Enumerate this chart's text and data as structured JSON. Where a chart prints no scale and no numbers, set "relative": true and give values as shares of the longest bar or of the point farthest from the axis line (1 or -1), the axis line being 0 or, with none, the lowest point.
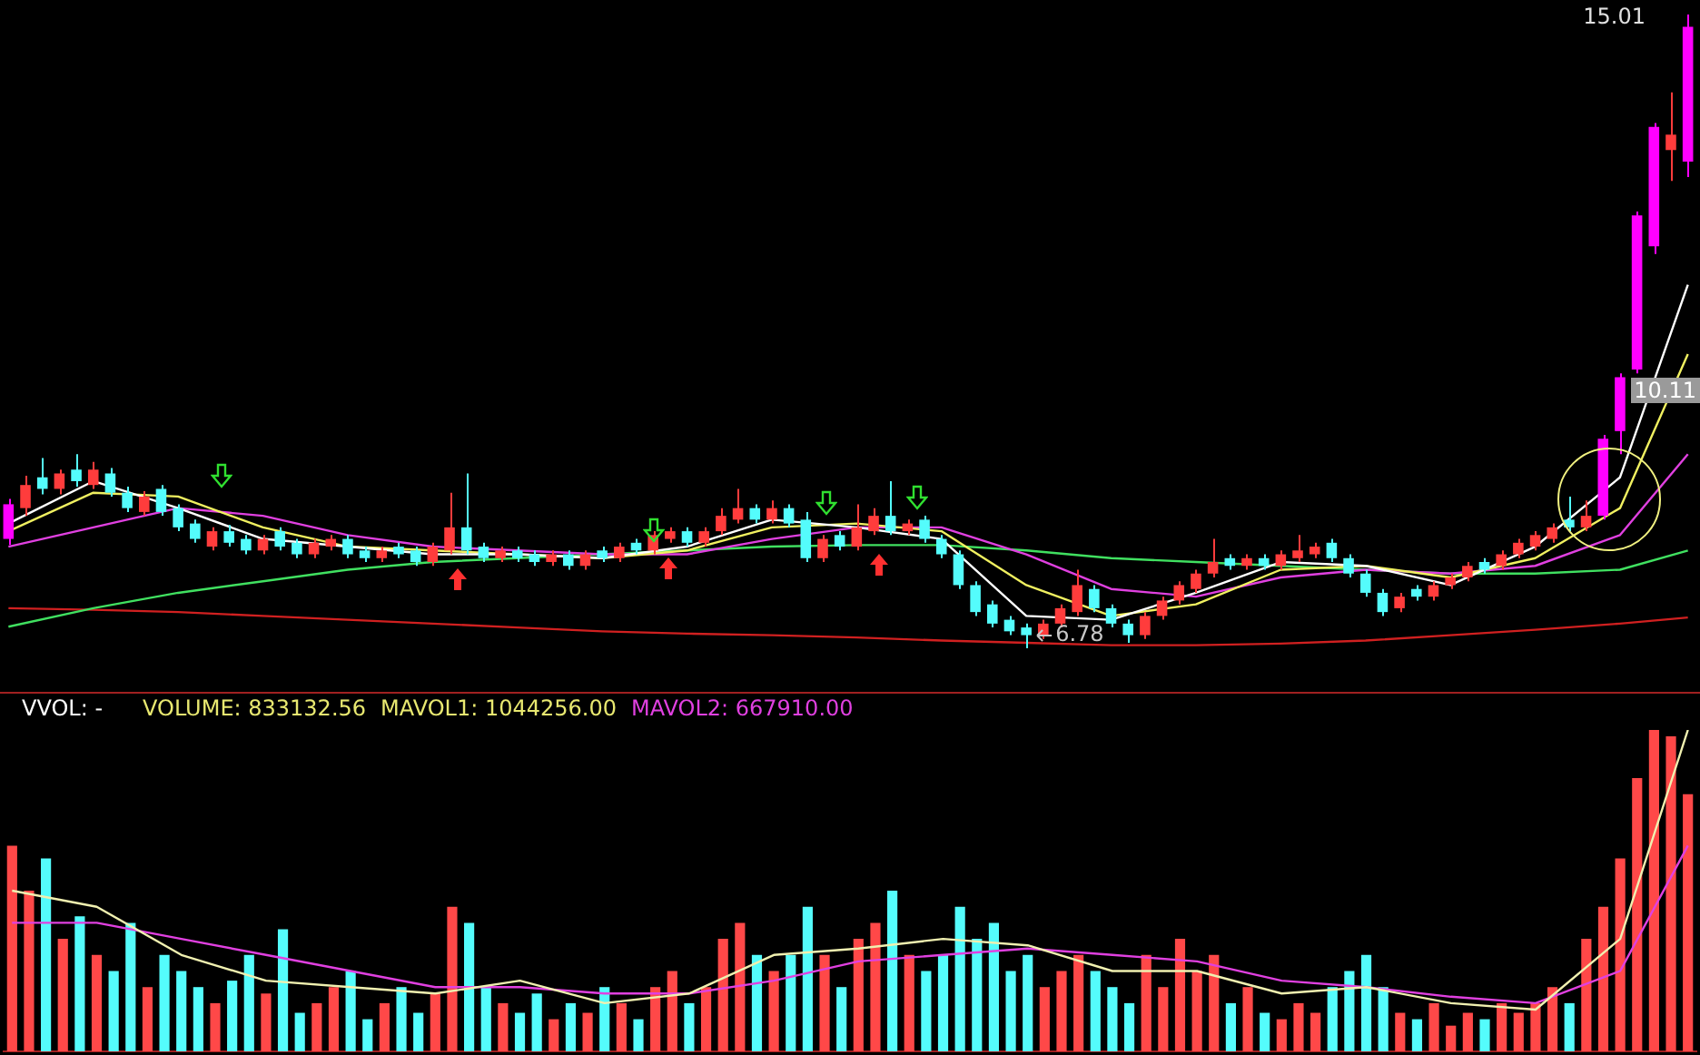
{
  "chart_data": [
    {
      "type": "candlestick",
      "categories": [
        null,
        null,
        null,
        null,
        null,
        null,
        null,
        null,
        null,
        null,
        null,
        null,
        null,
        null,
        null,
        null,
        null,
        null,
        null,
        null,
        null,
        null,
        null,
        null,
        null,
        null,
        null,
        null,
        null,
        null,
        null,
        null,
        null,
        null,
        null,
        null,
        null,
        null,
        null,
        null,
        null,
        null,
        null,
        null,
        null,
        null,
        null,
        null,
        null,
        null,
        null,
        null,
        null,
        null,
        null,
        null,
        null,
        null,
        null,
        null,
        null,
        null,
        null,
        null,
        null,
        null,
        null,
        null,
        null,
        null,
        null,
        null,
        null,
        null,
        null,
        null,
        null,
        null,
        null,
        null,
        null,
        null,
        null,
        null,
        null,
        null,
        null,
        null,
        null,
        null,
        null,
        null,
        null,
        null,
        null,
        null,
        null,
        null,
        null,
        null
      ],
      "ohlc": [
        [
          8.2,
          8.72,
          8.12,
          8.65
        ],
        [
          8.6,
          9.02,
          8.5,
          8.9
        ],
        [
          9.0,
          9.25,
          8.78,
          8.85
        ],
        [
          8.85,
          9.1,
          8.78,
          9.05
        ],
        [
          9.1,
          9.3,
          8.88,
          8.95
        ],
        [
          8.9,
          9.2,
          8.85,
          9.1
        ],
        [
          9.05,
          9.12,
          8.75,
          8.8
        ],
        [
          8.8,
          8.88,
          8.55,
          8.6
        ],
        [
          8.55,
          8.82,
          8.5,
          8.75
        ],
        [
          8.85,
          8.9,
          8.5,
          8.55
        ],
        [
          8.6,
          8.65,
          8.3,
          8.35
        ],
        [
          8.4,
          8.45,
          8.15,
          8.2
        ],
        [
          8.1,
          8.35,
          8.05,
          8.3
        ],
        [
          8.3,
          8.38,
          8.1,
          8.15
        ],
        [
          8.2,
          8.25,
          8.0,
          8.05
        ],
        [
          8.05,
          8.25,
          8.0,
          8.2
        ],
        [
          8.3,
          8.35,
          8.05,
          8.1
        ],
        [
          8.15,
          8.2,
          7.95,
          8.0
        ],
        [
          8.0,
          8.2,
          7.95,
          8.15
        ],
        [
          8.1,
          8.25,
          8.05,
          8.2
        ],
        [
          8.2,
          8.25,
          7.95,
          8.0
        ],
        [
          8.05,
          8.1,
          7.9,
          7.95
        ],
        [
          7.95,
          8.1,
          7.9,
          8.05
        ],
        [
          8.1,
          8.15,
          7.95,
          8.0
        ],
        [
          8.05,
          8.1,
          7.85,
          7.9
        ],
        [
          7.9,
          8.15,
          7.85,
          8.1
        ],
        [
          8.05,
          8.8,
          8.0,
          8.35
        ],
        [
          8.35,
          9.05,
          8.0,
          8.05
        ],
        [
          8.1,
          8.15,
          7.9,
          7.95
        ],
        [
          7.95,
          8.1,
          7.9,
          8.05
        ],
        [
          8.05,
          8.1,
          7.9,
          7.95
        ],
        [
          8.0,
          8.05,
          7.85,
          7.9
        ],
        [
          7.9,
          8.05,
          7.85,
          8.0
        ],
        [
          8.0,
          8.05,
          7.8,
          7.85
        ],
        [
          7.85,
          8.05,
          7.8,
          8.0
        ],
        [
          8.05,
          8.1,
          7.9,
          7.95
        ],
        [
          7.95,
          8.15,
          7.9,
          8.1
        ],
        [
          8.15,
          8.2,
          8.0,
          8.05
        ],
        [
          8.05,
          8.3,
          8.0,
          8.25
        ],
        [
          8.2,
          8.35,
          8.15,
          8.3
        ],
        [
          8.3,
          8.35,
          8.1,
          8.15
        ],
        [
          8.15,
          8.35,
          8.1,
          8.3
        ],
        [
          8.3,
          8.6,
          8.25,
          8.5
        ],
        [
          8.45,
          8.85,
          8.4,
          8.6
        ],
        [
          8.6,
          8.65,
          8.4,
          8.45
        ],
        [
          8.45,
          8.7,
          8.4,
          8.6
        ],
        [
          8.6,
          8.65,
          8.35,
          8.4
        ],
        [
          8.45,
          8.55,
          7.9,
          7.95
        ],
        [
          7.95,
          8.25,
          7.9,
          8.2
        ],
        [
          8.25,
          8.3,
          8.05,
          8.1
        ],
        [
          8.1,
          8.65,
          8.05,
          8.35
        ],
        [
          8.3,
          8.6,
          8.25,
          8.5
        ],
        [
          8.5,
          8.95,
          8.25,
          8.3
        ],
        [
          8.3,
          8.45,
          8.25,
          8.4
        ],
        [
          8.45,
          8.5,
          8.15,
          8.2
        ],
        [
          8.2,
          8.25,
          7.95,
          8.0
        ],
        [
          8.0,
          8.05,
          7.55,
          7.6
        ],
        [
          7.6,
          7.65,
          7.2,
          7.25
        ],
        [
          7.35,
          7.4,
          7.05,
          7.1
        ],
        [
          7.15,
          7.2,
          6.95,
          7.0
        ],
        [
          7.05,
          7.1,
          6.78,
          6.95
        ],
        [
          6.95,
          7.15,
          6.9,
          7.1
        ],
        [
          7.1,
          7.35,
          7.05,
          7.3
        ],
        [
          7.25,
          7.8,
          7.2,
          7.6
        ],
        [
          7.55,
          7.6,
          7.25,
          7.3
        ],
        [
          7.3,
          7.35,
          7.05,
          7.1
        ],
        [
          7.1,
          7.15,
          6.85,
          6.95
        ],
        [
          6.95,
          7.25,
          6.9,
          7.2
        ],
        [
          7.2,
          7.45,
          7.15,
          7.4
        ],
        [
          7.4,
          7.65,
          7.35,
          7.6
        ],
        [
          7.55,
          7.8,
          7.5,
          7.75
        ],
        [
          7.75,
          8.2,
          7.7,
          7.9
        ],
        [
          7.95,
          8.0,
          7.8,
          7.85
        ],
        [
          7.85,
          8.0,
          7.8,
          7.95
        ],
        [
          7.95,
          8.0,
          7.8,
          7.85
        ],
        [
          7.85,
          8.05,
          7.8,
          8.0
        ],
        [
          7.95,
          8.25,
          7.9,
          8.05
        ],
        [
          8.0,
          8.15,
          7.95,
          8.1
        ],
        [
          8.15,
          8.2,
          7.9,
          7.95
        ],
        [
          7.95,
          8.0,
          7.7,
          7.75
        ],
        [
          7.75,
          7.8,
          7.45,
          7.5
        ],
        [
          7.5,
          7.55,
          7.2,
          7.25
        ],
        [
          7.3,
          7.5,
          7.25,
          7.45
        ],
        [
          7.55,
          7.6,
          7.4,
          7.45
        ],
        [
          7.45,
          7.65,
          7.4,
          7.6
        ],
        [
          7.6,
          7.75,
          7.55,
          7.7
        ],
        [
          7.7,
          7.9,
          7.65,
          7.85
        ],
        [
          7.9,
          7.95,
          7.75,
          7.8
        ],
        [
          7.85,
          8.05,
          7.8,
          8.0
        ],
        [
          8.0,
          8.2,
          7.95,
          8.15
        ],
        [
          8.1,
          8.3,
          8.05,
          8.25
        ],
        [
          8.2,
          8.4,
          8.15,
          8.35
        ],
        [
          8.45,
          8.75,
          8.3,
          8.35
        ],
        [
          8.35,
          8.7,
          8.3,
          8.5
        ],
        [
          8.5,
          9.55,
          8.45,
          9.5
        ],
        [
          9.6,
          10.35,
          9.3,
          10.3
        ],
        [
          10.4,
          12.45,
          10.35,
          12.4
        ],
        [
          12.0,
          13.6,
          11.9,
          13.55
        ],
        [
          13.25,
          14.0,
          12.85,
          13.45
        ],
        [
          13.1,
          15.01,
          12.9,
          14.85
        ]
      ],
      "colors": [
        "#ff00ff",
        "#ff3c3c",
        "#54fcfc",
        "#ff3c3c",
        "#54fcfc",
        "#ff3c3c",
        "#54fcfc",
        "#54fcfc",
        "#ff3c3c",
        "#54fcfc",
        "#54fcfc",
        "#54fcfc",
        "#ff3c3c",
        "#54fcfc",
        "#54fcfc",
        "#ff3c3c",
        "#54fcfc",
        "#54fcfc",
        "#ff3c3c",
        "#ff3c3c",
        "#54fcfc",
        "#54fcfc",
        "#ff3c3c",
        "#54fcfc",
        "#54fcfc",
        "#ff3c3c",
        "#ff3c3c",
        "#54fcfc",
        "#54fcfc",
        "#ff3c3c",
        "#54fcfc",
        "#54fcfc",
        "#ff3c3c",
        "#54fcfc",
        "#ff3c3c",
        "#54fcfc",
        "#ff3c3c",
        "#54fcfc",
        "#ff3c3c",
        "#ff3c3c",
        "#54fcfc",
        "#ff3c3c",
        "#ff3c3c",
        "#ff3c3c",
        "#54fcfc",
        "#ff3c3c",
        "#54fcfc",
        "#54fcfc",
        "#ff3c3c",
        "#54fcfc",
        "#ff3c3c",
        "#ff3c3c",
        "#54fcfc",
        "#ff3c3c",
        "#54fcfc",
        "#54fcfc",
        "#54fcfc",
        "#54fcfc",
        "#54fcfc",
        "#54fcfc",
        "#54fcfc",
        "#ff3c3c",
        "#ff3c3c",
        "#ff3c3c",
        "#54fcfc",
        "#54fcfc",
        "#54fcfc",
        "#ff3c3c",
        "#ff3c3c",
        "#ff3c3c",
        "#ff3c3c",
        "#ff3c3c",
        "#54fcfc",
        "#ff3c3c",
        "#54fcfc",
        "#ff3c3c",
        "#ff3c3c",
        "#ff3c3c",
        "#54fcfc",
        "#54fcfc",
        "#54fcfc",
        "#54fcfc",
        "#ff3c3c",
        "#54fcfc",
        "#ff3c3c",
        "#ff3c3c",
        "#ff3c3c",
        "#54fcfc",
        "#ff3c3c",
        "#ff3c3c",
        "#ff3c3c",
        "#ff3c3c",
        "#54fcfc",
        "#ff3c3c",
        "#ff00ff",
        "#ff00ff",
        "#ff00ff",
        "#ff00ff",
        "#ff3c3c",
        "#ff00ff"
      ],
      "series": [
        {
          "type": "line",
          "color": "#ffffff",
          "values": [
            8.4,
            null,
            null,
            null,
            null,
            8.95,
            null,
            null,
            null,
            null,
            8.6,
            null,
            null,
            null,
            null,
            8.2,
            null,
            null,
            null,
            null,
            8.1,
            null,
            null,
            null,
            null,
            8.0,
            null,
            null,
            null,
            null,
            8.0,
            null,
            null,
            null,
            null,
            7.95,
            null,
            null,
            null,
            null,
            8.1,
            null,
            null,
            null,
            null,
            8.45,
            null,
            null,
            null,
            null,
            8.35,
            null,
            null,
            null,
            null,
            8.2,
            null,
            null,
            null,
            null,
            7.2,
            null,
            null,
            null,
            null,
            7.15,
            null,
            null,
            null,
            null,
            7.5,
            null,
            null,
            null,
            null,
            7.9,
            null,
            null,
            null,
            null,
            7.85,
            null,
            null,
            null,
            null,
            7.6,
            null,
            null,
            null,
            null,
            8.1,
            null,
            null,
            null,
            null,
            9.0,
            null,
            null,
            null,
            11.5
          ]
        },
        {
          "type": "line",
          "color": "#f0f060",
          "values": [
            8.3,
            null,
            null,
            null,
            null,
            8.8,
            null,
            null,
            null,
            null,
            8.75,
            null,
            null,
            null,
            null,
            8.35,
            null,
            null,
            null,
            null,
            8.1,
            null,
            null,
            null,
            null,
            8.05,
            null,
            null,
            null,
            null,
            8.0,
            null,
            null,
            null,
            null,
            7.95,
            null,
            null,
            null,
            null,
            8.05,
            null,
            null,
            null,
            null,
            8.35,
            null,
            null,
            null,
            null,
            8.4,
            null,
            null,
            null,
            null,
            8.3,
            null,
            null,
            null,
            null,
            7.6,
            null,
            null,
            null,
            null,
            7.2,
            null,
            null,
            null,
            null,
            7.35,
            null,
            null,
            null,
            null,
            7.8,
            null,
            null,
            null,
            null,
            7.85,
            null,
            null,
            null,
            null,
            7.7,
            null,
            null,
            null,
            null,
            7.95,
            null,
            null,
            null,
            null,
            8.6,
            null,
            null,
            null,
            10.6
          ]
        },
        {
          "type": "line",
          "color": "#e040e0",
          "values": [
            8.1,
            null,
            null,
            null,
            null,
            8.35,
            null,
            null,
            null,
            null,
            8.6,
            null,
            null,
            null,
            null,
            8.5,
            null,
            null,
            null,
            null,
            8.25,
            null,
            null,
            null,
            null,
            8.1,
            null,
            null,
            null,
            null,
            8.05,
            null,
            null,
            null,
            null,
            8.0,
            null,
            null,
            null,
            null,
            8.0,
            null,
            null,
            null,
            null,
            8.2,
            null,
            null,
            null,
            null,
            8.35,
            null,
            null,
            null,
            null,
            8.35,
            null,
            null,
            null,
            null,
            8.0,
            null,
            null,
            null,
            null,
            7.55,
            null,
            null,
            null,
            null,
            7.45,
            null,
            null,
            null,
            null,
            7.7,
            null,
            null,
            null,
            null,
            7.8,
            null,
            null,
            null,
            null,
            7.75,
            null,
            null,
            null,
            null,
            7.85,
            null,
            null,
            null,
            null,
            8.25,
            null,
            null,
            null,
            9.3
          ]
        },
        {
          "type": "line",
          "color": "#40e060",
          "values": [
            7.06,
            null,
            null,
            null,
            null,
            7.3,
            null,
            null,
            null,
            null,
            7.5,
            null,
            null,
            null,
            null,
            7.65,
            null,
            null,
            null,
            null,
            7.8,
            null,
            null,
            null,
            null,
            7.9,
            null,
            null,
            null,
            null,
            7.95,
            null,
            null,
            null,
            null,
            8.0,
            null,
            null,
            null,
            null,
            8.05,
            null,
            null,
            null,
            null,
            8.1,
            null,
            null,
            null,
            null,
            8.12,
            null,
            null,
            null,
            null,
            8.12,
            null,
            null,
            null,
            null,
            8.05,
            null,
            null,
            null,
            null,
            7.95,
            null,
            null,
            null,
            null,
            7.9,
            null,
            null,
            null,
            null,
            7.85,
            null,
            null,
            null,
            null,
            7.8,
            null,
            null,
            null,
            null,
            7.75,
            null,
            null,
            null,
            null,
            7.75,
            null,
            null,
            null,
            null,
            7.8,
            null,
            null,
            null,
            8.05
          ]
        },
        {
          "type": "line",
          "color": "#d02020",
          "values": [
            7.3,
            null,
            null,
            null,
            null,
            7.28,
            null,
            null,
            null,
            null,
            7.25,
            null,
            null,
            null,
            null,
            7.2,
            null,
            null,
            null,
            null,
            7.15,
            null,
            null,
            null,
            null,
            7.1,
            null,
            null,
            null,
            null,
            7.05,
            null,
            null,
            null,
            null,
            7.0,
            null,
            null,
            null,
            null,
            6.97,
            null,
            null,
            null,
            null,
            6.95,
            null,
            null,
            null,
            null,
            6.92,
            null,
            null,
            null,
            null,
            6.88,
            null,
            null,
            null,
            null,
            6.85,
            null,
            null,
            null,
            null,
            6.82,
            null,
            null,
            null,
            null,
            6.82,
            null,
            null,
            null,
            null,
            6.84,
            null,
            null,
            null,
            null,
            6.88,
            null,
            null,
            null,
            null,
            6.95,
            null,
            null,
            null,
            null,
            7.02,
            null,
            null,
            null,
            null,
            7.1,
            null,
            null,
            null,
            7.18
          ]
        }
      ],
      "annotations": [
        "15.01",
        {
          "text": "6.78",
          "y": 6.78
        },
        "10.11"
      ],
      "legend": false,
      "tick_labels": false,
      "marker": "none"
    },
    {
      "type": "bar",
      "relative": true,
      "categories": [
        null,
        null,
        null,
        null,
        null,
        null,
        null,
        null,
        null,
        null,
        null,
        null,
        null,
        null,
        null,
        null,
        null,
        null,
        null,
        null,
        null,
        null,
        null,
        null,
        null,
        null,
        null,
        null,
        null,
        null,
        null,
        null,
        null,
        null,
        null,
        null,
        null,
        null,
        null,
        null,
        null,
        null,
        null,
        null,
        null,
        null,
        null,
        null,
        null,
        null,
        null,
        null,
        null,
        null,
        null,
        null,
        null,
        null,
        null,
        null,
        null,
        null,
        null,
        null,
        null,
        null,
        null,
        null,
        null,
        null,
        null,
        null,
        null,
        null,
        null,
        null,
        null,
        null,
        null,
        null,
        null,
        null,
        null,
        null,
        null,
        null,
        null,
        null,
        null,
        null,
        null,
        null,
        null,
        null,
        null,
        null,
        null,
        null,
        null,
        null
      ],
      "series": [
        {
          "type": "bar",
          "colors": [
            "#ff4848",
            "#ff4848",
            "#54fcfc",
            "#ff4848",
            "#54fcfc",
            "#ff4848",
            "#54fcfc",
            "#54fcfc",
            "#ff4848",
            "#54fcfc",
            "#54fcfc",
            "#54fcfc",
            "#ff4848",
            "#54fcfc",
            "#54fcfc",
            "#ff4848",
            "#54fcfc",
            "#54fcfc",
            "#ff4848",
            "#ff4848",
            "#54fcfc",
            "#54fcfc",
            "#ff4848",
            "#54fcfc",
            "#54fcfc",
            "#ff4848",
            "#ff4848",
            "#54fcfc",
            "#54fcfc",
            "#ff4848",
            "#54fcfc",
            "#54fcfc",
            "#ff4848",
            "#54fcfc",
            "#ff4848",
            "#54fcfc",
            "#ff4848",
            "#54fcfc",
            "#ff4848",
            "#ff4848",
            "#54fcfc",
            "#ff4848",
            "#ff4848",
            "#ff4848",
            "#54fcfc",
            "#ff4848",
            "#54fcfc",
            "#54fcfc",
            "#ff4848",
            "#54fcfc",
            "#ff4848",
            "#ff4848",
            "#54fcfc",
            "#ff4848",
            "#54fcfc",
            "#54fcfc",
            "#54fcfc",
            "#54fcfc",
            "#54fcfc",
            "#54fcfc",
            "#54fcfc",
            "#ff4848",
            "#ff4848",
            "#ff4848",
            "#54fcfc",
            "#54fcfc",
            "#54fcfc",
            "#ff4848",
            "#ff4848",
            "#ff4848",
            "#ff4848",
            "#ff4848",
            "#54fcfc",
            "#ff4848",
            "#54fcfc",
            "#ff4848",
            "#ff4848",
            "#ff4848",
            "#54fcfc",
            "#54fcfc",
            "#54fcfc",
            "#54fcfc",
            "#ff4848",
            "#54fcfc",
            "#ff4848",
            "#ff4848",
            "#ff4848",
            "#54fcfc",
            "#ff4848",
            "#ff4848",
            "#ff4848",
            "#ff4848",
            "#54fcfc",
            "#ff4848",
            "#ff4848",
            "#ff4848",
            "#ff4848",
            "#ff4848",
            "#ff4848",
            "#ff4848"
          ],
          "values": [
            0.64,
            0.5,
            0.6,
            0.35,
            0.42,
            0.3,
            0.25,
            0.4,
            0.2,
            0.3,
            0.25,
            0.2,
            0.15,
            0.22,
            0.3,
            0.18,
            0.38,
            0.12,
            0.15,
            0.2,
            0.25,
            0.1,
            0.15,
            0.2,
            0.12,
            0.18,
            0.45,
            0.4,
            0.2,
            0.15,
            0.12,
            0.18,
            0.1,
            0.15,
            0.12,
            0.2,
            0.15,
            0.1,
            0.2,
            0.25,
            0.15,
            0.2,
            0.35,
            0.4,
            0.3,
            0.25,
            0.3,
            0.45,
            0.3,
            0.2,
            0.35,
            0.4,
            0.5,
            0.3,
            0.25,
            0.3,
            0.45,
            0.35,
            0.4,
            0.25,
            0.3,
            0.2,
            0.25,
            0.3,
            0.25,
            0.2,
            0.15,
            0.3,
            0.2,
            0.35,
            0.25,
            0.3,
            0.15,
            0.2,
            0.12,
            0.1,
            0.15,
            0.12,
            0.2,
            0.25,
            0.3,
            0.2,
            0.12,
            0.1,
            0.15,
            0.08,
            0.12,
            0.1,
            0.15,
            0.12,
            0.15,
            0.2,
            0.15,
            0.35,
            0.45,
            0.6,
            0.85,
            1.0,
            0.98,
            0.8
          ]
        },
        {
          "type": "line",
          "color": "#f0f0b0",
          "values": [
            0.5,
            null,
            null,
            null,
            null,
            0.45,
            null,
            null,
            null,
            null,
            0.3,
            null,
            null,
            null,
            null,
            0.22,
            null,
            null,
            null,
            null,
            0.2,
            null,
            null,
            null,
            null,
            0.18,
            null,
            null,
            null,
            null,
            0.22,
            null,
            null,
            null,
            null,
            0.15,
            null,
            null,
            null,
            null,
            0.18,
            null,
            null,
            null,
            null,
            0.3,
            null,
            null,
            null,
            null,
            0.32,
            null,
            null,
            null,
            null,
            0.35,
            null,
            null,
            null,
            null,
            0.33,
            null,
            null,
            null,
            null,
            0.25,
            null,
            null,
            null,
            null,
            0.25,
            null,
            null,
            null,
            null,
            0.18,
            null,
            null,
            null,
            null,
            0.2,
            null,
            null,
            null,
            null,
            0.15,
            null,
            null,
            null,
            null,
            0.13,
            null,
            null,
            null,
            null,
            0.35,
            null,
            null,
            null,
            1.0
          ]
        },
        {
          "type": "line",
          "color": "#e040e0",
          "values": [
            0.4,
            null,
            null,
            null,
            null,
            0.4,
            null,
            null,
            null,
            null,
            0.35,
            null,
            null,
            null,
            null,
            0.3,
            null,
            null,
            null,
            null,
            0.25,
            null,
            null,
            null,
            null,
            0.2,
            null,
            null,
            null,
            null,
            0.2,
            null,
            null,
            null,
            null,
            0.18,
            null,
            null,
            null,
            null,
            0.18,
            null,
            null,
            null,
            null,
            0.22,
            null,
            null,
            null,
            null,
            0.28,
            null,
            null,
            null,
            null,
            0.3,
            null,
            null,
            null,
            null,
            0.32,
            null,
            null,
            null,
            null,
            0.3,
            null,
            null,
            null,
            null,
            0.28,
            null,
            null,
            null,
            null,
            0.22,
            null,
            null,
            null,
            null,
            0.2,
            null,
            null,
            null,
            null,
            0.17,
            null,
            null,
            null,
            null,
            0.15,
            null,
            null,
            null,
            null,
            0.25,
            null,
            null,
            null,
            0.64
          ]
        }
      ],
      "annotations": [
        "VVOL: -",
        "VOLUME: 833132.56",
        "MAVOL1: 1044256.00",
        "MAVOL2: 667910.00"
      ],
      "legend": false,
      "tick_labels": false,
      "marker": "none"
    }
  ]
}
